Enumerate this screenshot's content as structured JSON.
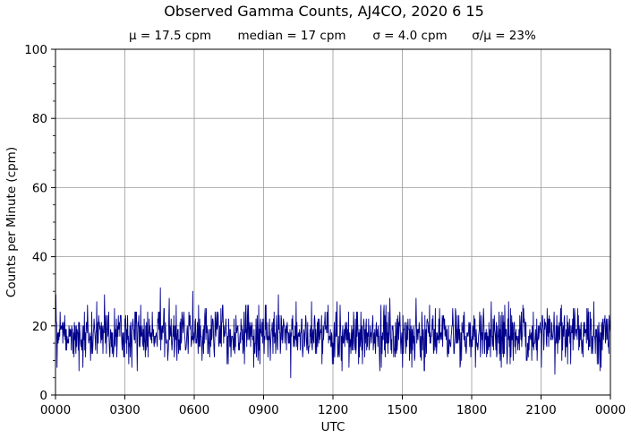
{
  "chart_data": {
    "type": "line",
    "title": "Observed Gamma Counts, AJ4CO, 2020 6 15",
    "subtitle": {
      "mean": "μ = 17.5 cpm",
      "median": "median = 17 cpm",
      "sigma": "σ = 4.0 cpm",
      "ratio": "σ/μ = 23%"
    },
    "xlabel": "UTC",
    "ylabel": "Counts per Minute (cpm)",
    "x_range_minutes": [
      0,
      1440
    ],
    "ylim": [
      0,
      100
    ],
    "x_ticks": [
      {
        "minute": 0,
        "label": "0000"
      },
      {
        "minute": 180,
        "label": "0300"
      },
      {
        "minute": 360,
        "label": "0600"
      },
      {
        "minute": 540,
        "label": "0900"
      },
      {
        "minute": 720,
        "label": "1200"
      },
      {
        "minute": 900,
        "label": "1500"
      },
      {
        "minute": 1080,
        "label": "1800"
      },
      {
        "minute": 1260,
        "label": "2100"
      },
      {
        "minute": 1440,
        "label": "0000"
      }
    ],
    "y_ticks": [
      0,
      20,
      40,
      60,
      80,
      100
    ],
    "grid": true,
    "series": [
      {
        "color": "#00008b",
        "samples": 1440,
        "mean": 17.5,
        "std": 4.0,
        "min": 5,
        "max": 32
      }
    ]
  }
}
